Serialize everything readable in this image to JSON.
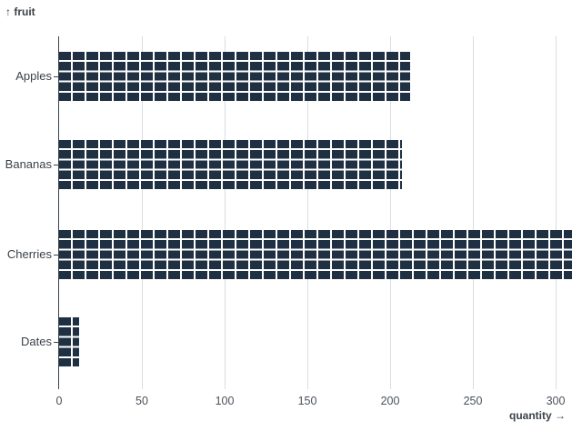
{
  "chart_data": {
    "type": "bar",
    "variant": "waffle",
    "orientation": "horizontal",
    "title": "",
    "xlabel": "quantity →",
    "ylabel": "↑ fruit",
    "categories": [
      "Apples",
      "Bananas",
      "Cherries",
      "Dates"
    ],
    "values": [
      212,
      207,
      310,
      12
    ],
    "x_ticks": [
      0,
      50,
      100,
      150,
      200,
      250,
      300
    ],
    "xlim": [
      0,
      316
    ],
    "grid": true,
    "legend": false,
    "colors": {
      "bar": "#203043",
      "grid": "#d9dde1",
      "axis": "#39434f",
      "tick_text": "#4a525c",
      "label_text": "#3b4149",
      "background": "#ffffff"
    }
  }
}
